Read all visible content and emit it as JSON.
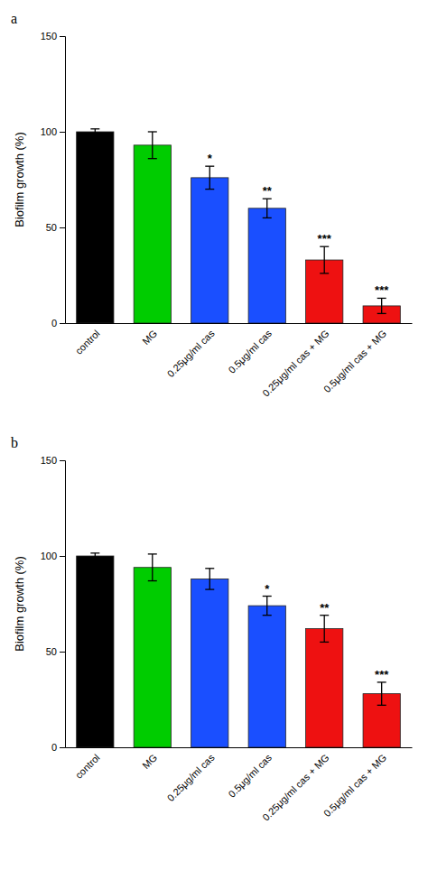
{
  "chart_data": [
    {
      "type": "bar",
      "title": "a",
      "categories": [
        "control",
        "MG",
        "0.25μg/ml cas",
        "0.5μg/ml cas",
        "0.25μg/ml cas + MG",
        "0.5μg/ml cas + MG"
      ],
      "values": [
        100,
        93,
        76,
        60,
        33,
        9
      ],
      "errors": [
        1.5,
        7,
        6,
        5,
        7,
        4
      ],
      "colors": [
        "#000000",
        "#00cc00",
        "#1a4fff",
        "#1a4fff",
        "#ee1111",
        "#ee1111"
      ],
      "annotations": [
        null,
        null,
        "*",
        "**",
        "***",
        "***"
      ],
      "ylabel": "Biofilm growth (%)",
      "ylim": [
        0,
        150
      ],
      "yticks": [
        0,
        50,
        100,
        150
      ]
    },
    {
      "type": "bar",
      "title": "b",
      "categories": [
        "control",
        "MG",
        "0.25μg/ml cas",
        "0.5μg/ml cas",
        "0.25μg/ml cas + MG",
        "0.5μg/ml cas + MG"
      ],
      "values": [
        100,
        94,
        88,
        74,
        62,
        28
      ],
      "errors": [
        1.5,
        7,
        5.5,
        5,
        7,
        6
      ],
      "colors": [
        "#000000",
        "#00cc00",
        "#1a4fff",
        "#1a4fff",
        "#ee1111",
        "#ee1111"
      ],
      "annotations": [
        null,
        null,
        null,
        "*",
        "**",
        "***"
      ],
      "ylabel": "Biofilm growth (%)",
      "ylim": [
        0,
        150
      ],
      "yticks": [
        0,
        50,
        100,
        150
      ]
    }
  ]
}
